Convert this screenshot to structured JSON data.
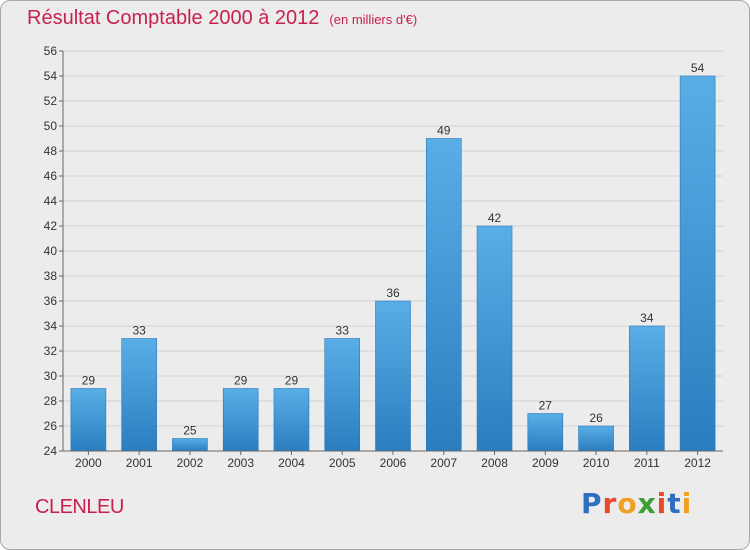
{
  "header": {
    "title": "Résultat Comptable 2000 à 2012",
    "subtitle": "(en milliers d'€)"
  },
  "footer": {
    "town": "CLENLEU",
    "logo": "Proxiti"
  },
  "colors": {
    "accent": "#c8204f",
    "bar_top": "#5aaee6",
    "bar_bottom": "#2a7ec0",
    "logo_letters": [
      "#2e6fbf",
      "#e8492a",
      "#f0a020",
      "#3aa035",
      "#e8492a",
      "#2e6fbf",
      "#f0a020"
    ]
  },
  "chart_data": {
    "type": "bar",
    "title": "Résultat Comptable 2000 à 2012",
    "subtitle": "(en milliers d'€)",
    "categories": [
      "2000",
      "2001",
      "2002",
      "2003",
      "2004",
      "2005",
      "2006",
      "2007",
      "2008",
      "2009",
      "2010",
      "2011",
      "2012"
    ],
    "values": [
      29,
      33,
      25,
      29,
      29,
      33,
      36,
      49,
      42,
      27,
      26,
      34,
      54
    ],
    "ylim": [
      24,
      56
    ],
    "yticks": [
      24,
      26,
      28,
      30,
      32,
      34,
      36,
      38,
      40,
      42,
      44,
      46,
      48,
      50,
      52,
      54,
      56
    ],
    "grid": true,
    "data_labels": true,
    "xlabel": "",
    "ylabel": ""
  }
}
